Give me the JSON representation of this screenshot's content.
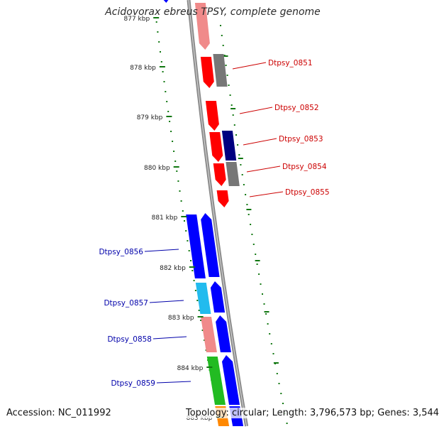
{
  "title": "Acidovorax ebreus TPSY, complete genome",
  "footer": {
    "accession": "Accession: NC_011992",
    "summary": "Topology: circular; Length: 3,796,573 bp; Genes: 3,544"
  },
  "ticks": [
    {
      "label": "877 kbp",
      "kbp": 877
    },
    {
      "label": "878 kbp",
      "kbp": 878
    },
    {
      "label": "879 kbp",
      "kbp": 879
    },
    {
      "label": "880 kbp",
      "kbp": 880
    },
    {
      "label": "881 kbp",
      "kbp": 881
    },
    {
      "label": "882 kbp",
      "kbp": 882
    },
    {
      "label": "883 kbp",
      "kbp": 883
    },
    {
      "label": "884 kbp",
      "kbp": 884
    },
    {
      "label": "885 kbp",
      "kbp": 885
    }
  ],
  "gene_labels": [
    {
      "text": "Dtpsy_0851",
      "color": "#cc0000"
    },
    {
      "text": "Dtpsy_0852",
      "color": "#cc0000"
    },
    {
      "text": "Dtpsy_0853",
      "color": "#cc0000"
    },
    {
      "text": "Dtpsy_0854",
      "color": "#cc0000"
    },
    {
      "text": "Dtpsy_0855",
      "color": "#cc0000"
    },
    {
      "text": "Dtpsy_0856",
      "color": "#0000aa"
    },
    {
      "text": "Dtpsy_0857",
      "color": "#0000aa"
    },
    {
      "text": "Dtpsy_0858",
      "color": "#0000aa"
    },
    {
      "text": "Dtpsy_0859",
      "color": "#0000aa"
    }
  ],
  "colors": {
    "backbone": "#8a8a8a",
    "tick": "#117711",
    "red": "#ff0000",
    "pink": "#f08a8a",
    "gray": "#777777",
    "navy": "#000080",
    "blue": "#0000ff",
    "cyan": "#22bbee",
    "green": "#22bb22"
  }
}
